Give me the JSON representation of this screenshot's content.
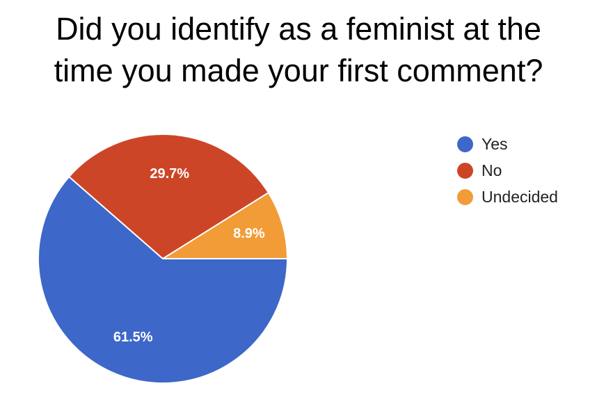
{
  "chart_data": {
    "type": "pie",
    "title_lines": [
      "Did you identify as a feminist at the",
      "time you made your first comment?"
    ],
    "categories": [
      "Yes",
      "No",
      "Undecided"
    ],
    "values": [
      61.5,
      29.7,
      8.9
    ],
    "value_labels": [
      "61.5%",
      "29.7%",
      "8.9%"
    ],
    "colors": [
      "#3d67c8",
      "#cd4527",
      "#f29c38"
    ],
    "legend_position": "right"
  }
}
